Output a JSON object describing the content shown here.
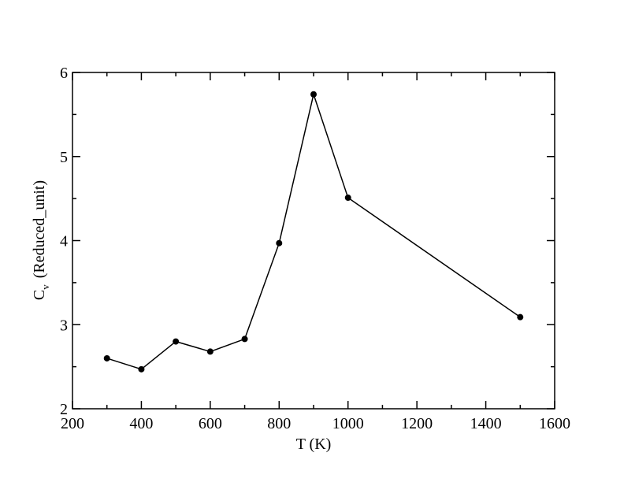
{
  "chart_data": {
    "type": "line",
    "x_label": "T (K)",
    "y_label": {
      "symbol": "C",
      "subscript": "v",
      "unit": "(Reduced_unit)"
    },
    "x": [
      300,
      400,
      500,
      600,
      700,
      800,
      900,
      1000,
      1500
    ],
    "values": [
      2.6,
      2.47,
      2.8,
      2.68,
      2.83,
      3.97,
      5.74,
      4.51,
      3.09
    ],
    "color": "#000000",
    "marker": "circle",
    "xlim": [
      200,
      1600
    ],
    "xticks": [
      200,
      400,
      600,
      800,
      1000,
      1200,
      1400,
      1600
    ],
    "xminorticks": [
      300,
      500,
      700,
      900,
      1100,
      1300,
      1500
    ],
    "ylim": [
      2,
      6
    ],
    "yticks": [
      2,
      3,
      4,
      5,
      6
    ],
    "yminorticks": [
      2.5,
      3.5,
      4.5,
      5.5
    ],
    "grid": false
  }
}
